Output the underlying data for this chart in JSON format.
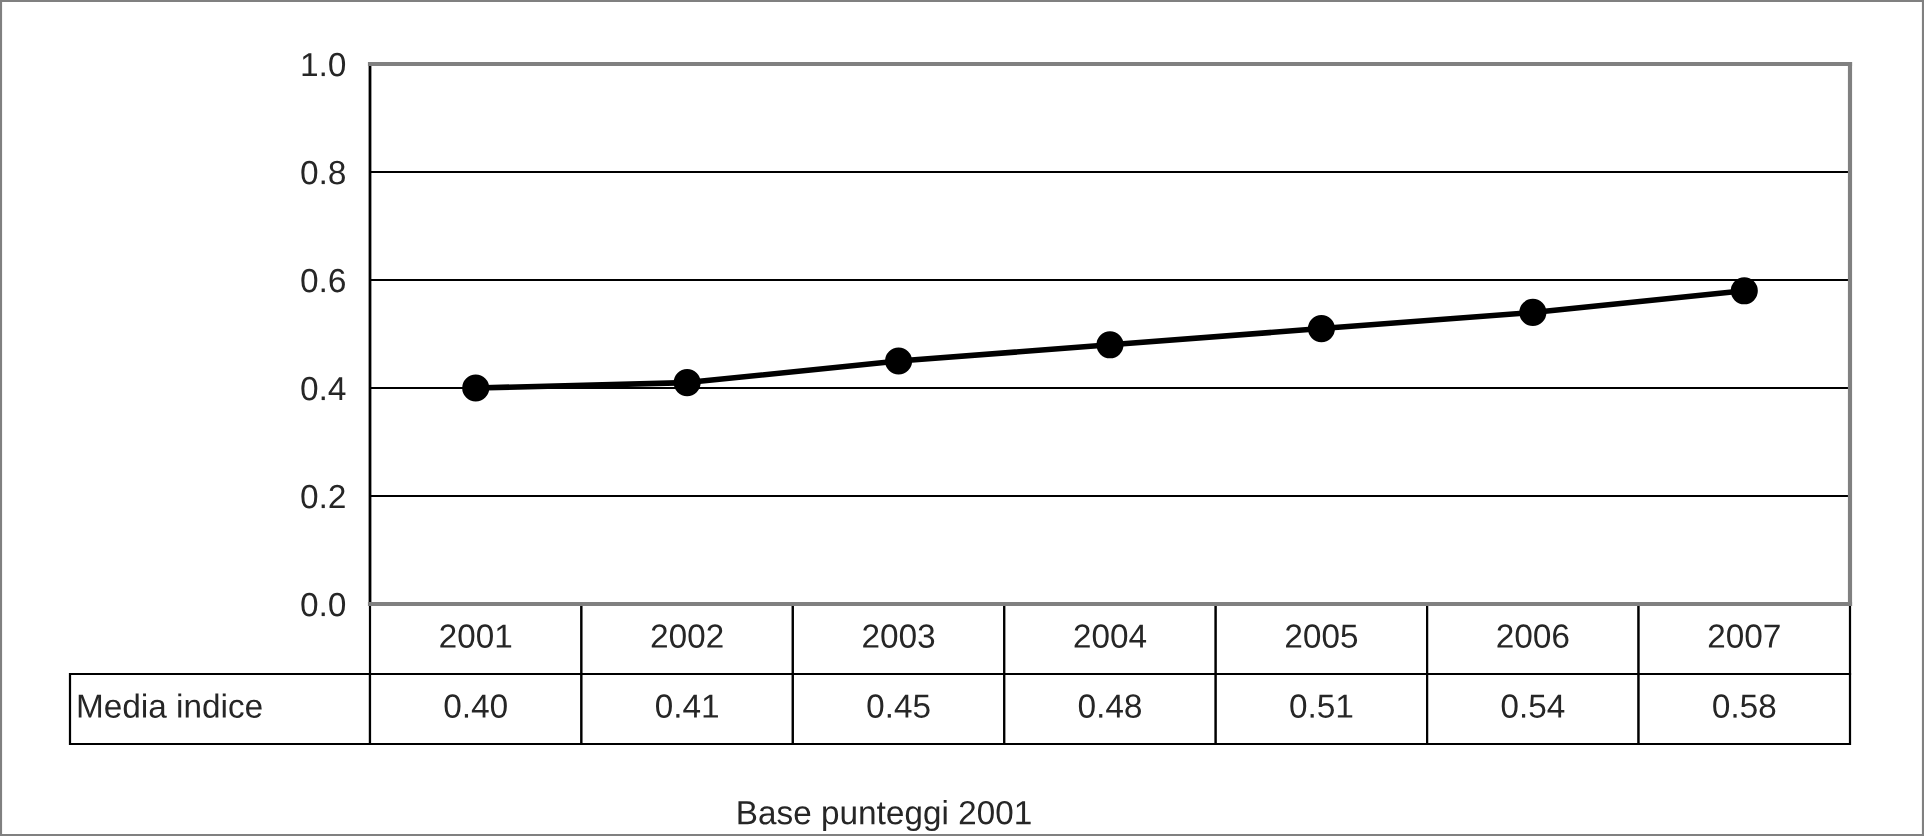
{
  "chart_data": {
    "type": "line",
    "xlabel": "Base punteggi 2001",
    "categories": [
      "2001",
      "2002",
      "2003",
      "2004",
      "2005",
      "2006",
      "2007"
    ],
    "series": [
      {
        "name": "Media indice",
        "color": "#000000",
        "values": [
          0.4,
          0.41,
          0.45,
          0.48,
          0.51,
          0.54,
          0.58
        ],
        "value_labels": [
          "0.40",
          "0.41",
          "0.45",
          "0.48",
          "0.51",
          "0.54",
          "0.58"
        ]
      }
    ],
    "ylim": [
      0,
      1
    ],
    "yticks": [
      {
        "value": 0,
        "label": "0.0"
      },
      {
        "value": 0.2,
        "label": "0.2"
      },
      {
        "value": 0.4,
        "label": "0.4"
      },
      {
        "value": 0.6,
        "label": "0.6"
      },
      {
        "value": 0.8,
        "label": "0.8"
      },
      {
        "value": 1,
        "label": "1.0"
      }
    ],
    "grid": "y",
    "marker": "circle",
    "line_style": "solid",
    "legend": false
  }
}
